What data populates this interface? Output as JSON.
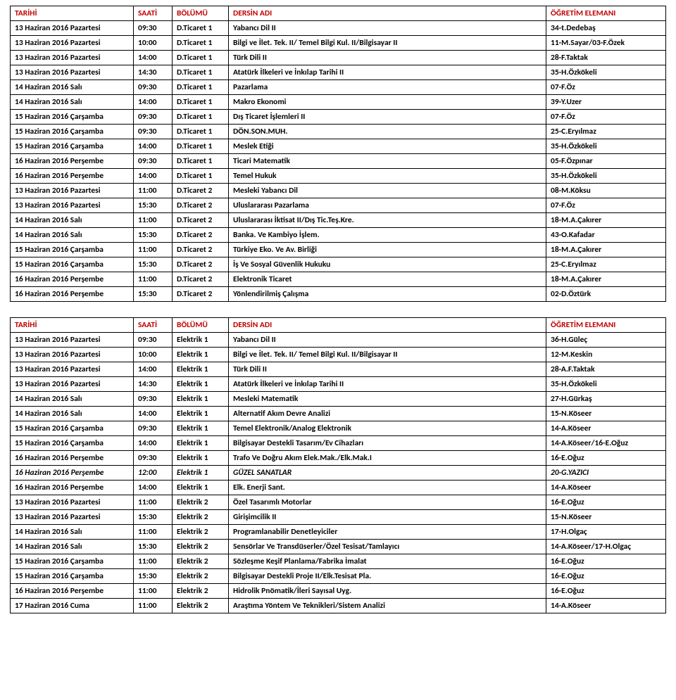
{
  "header": {
    "date": "TARİHİ",
    "time": "SAATİ",
    "dept": "BÖLÜMÜ",
    "course": "DERSİN ADI",
    "instructor": "ÖĞRETİM  ELEMANI",
    "color": "#c00000"
  },
  "colors": {
    "border": "#000000",
    "text": "#000000",
    "background": "#ffffff"
  },
  "tables": [
    {
      "rows": [
        {
          "date": "13 Haziran 2016 Pazartesi",
          "time": "09:30",
          "dept": "D.Ticaret 1",
          "course": "Yabancı Dil II",
          "inst": "34-t.Dedebaş"
        },
        {
          "date": "13 Haziran 2016 Pazartesi",
          "time": "10:00",
          "dept": "D.Ticaret 1",
          "course": "Bilgi ve İlet. Tek. II/ Temel Bilgi Kul. II/Bilgisayar II",
          "inst": "11-M.Sayar/03-F.Özek"
        },
        {
          "date": "13 Haziran 2016 Pazartesi",
          "time": "14:00",
          "dept": "D.Ticaret 1",
          "course": "Türk Dili II",
          "inst": "28-F.Taktak"
        },
        {
          "date": "13 Haziran 2016 Pazartesi",
          "time": "14:30",
          "dept": "D.Ticaret 1",
          "course": "Atatürk İlkeleri ve İnkılap Tarihi II",
          "inst": "35-H.Özkökeli"
        },
        {
          "date": "14 Haziran 2016 Salı",
          "time": "09:30",
          "dept": "D.Ticaret 1",
          "course": "Pazarlama",
          "inst": "07-F.Öz"
        },
        {
          "date": "14 Haziran 2016 Salı",
          "time": "14:00",
          "dept": "D.Ticaret 1",
          "course": "Makro Ekonomi",
          "inst": "39-Y.Uzer"
        },
        {
          "date": "15 Haziran 2016 Çarşamba",
          "time": "09:30",
          "dept": "D.Ticaret 1",
          "course": "Dış Ticaret İşlemleri II",
          "inst": "07-F.Öz"
        },
        {
          "date": "15 Haziran 2016 Çarşamba",
          "time": "09:30",
          "dept": "D.Ticaret 1",
          "course": "DÖN.SON.MUH.",
          "inst": "25-C.Eryılmaz"
        },
        {
          "date": "15 Haziran 2016 Çarşamba",
          "time": "14:00",
          "dept": "D.Ticaret 1",
          "course": "Meslek Etiği",
          "inst": "35-H.Özkökeli"
        },
        {
          "date": "16 Haziran 2016 Perşembe",
          "time": "09:30",
          "dept": "D.Ticaret 1",
          "course": "Ticari Matematik",
          "inst": "05-F.Özpınar"
        },
        {
          "date": "16 Haziran 2016 Perşembe",
          "time": "14:00",
          "dept": "D.Ticaret 1",
          "course": "Temel Hukuk",
          "inst": "35-H.Özkökeli"
        },
        {
          "date": "13 Haziran 2016 Pazartesi",
          "time": "11:00",
          "dept": "D.Ticaret 2",
          "course": "Mesleki Yabancı Dil",
          "inst": "08-M.Köksu"
        },
        {
          "date": "13 Haziran 2016 Pazartesi",
          "time": "15:30",
          "dept": "D.Ticaret 2",
          "course": "Uluslararası Pazarlama",
          "inst": "07-F.Öz"
        },
        {
          "date": "14 Haziran 2016 Salı",
          "time": "11:00",
          "dept": "D.Ticaret 2",
          "course": "Uluslararası İktisat II/Dış Tic.Teş.Kre.",
          "inst": "18-M.A.Çakırer"
        },
        {
          "date": "14 Haziran 2016 Salı",
          "time": "15:30",
          "dept": "D.Ticaret 2",
          "course": "Banka. Ve Kambiyo İşlem.",
          "inst": "43-O.Kafadar"
        },
        {
          "date": "15 Haziran 2016 Çarşamba",
          "time": "11:00",
          "dept": "D.Ticaret 2",
          "course": "Türkiye Eko. Ve Av. Birliği",
          "inst": "18-M.A.Çakırer"
        },
        {
          "date": "15 Haziran 2016 Çarşamba",
          "time": "15:30",
          "dept": "D.Ticaret 2",
          "course": "İş Ve Sosyal Güvenlik Hukuku",
          "inst": "25-C.Eryılmaz"
        },
        {
          "date": "16 Haziran 2016 Perşembe",
          "time": "11:00",
          "dept": "D.Ticaret 2",
          "course": "Elektronik Ticaret",
          "inst": "18-M.A.Çakırer"
        },
        {
          "date": "16 Haziran 2016 Perşembe",
          "time": "15:30",
          "dept": "D.Ticaret 2",
          "course": "Yönlendirilmiş Çalışma",
          "inst": "02-D.Öztürk"
        }
      ]
    },
    {
      "rows": [
        {
          "date": "13 Haziran 2016 Pazartesi",
          "time": "09:30",
          "dept": "Elektrik 1",
          "course": "Yabancı Dil II",
          "inst": "36-H.Güleç"
        },
        {
          "date": "13 Haziran 2016 Pazartesi",
          "time": "10:00",
          "dept": "Elektrik 1",
          "course": "Bilgi ve İlet. Tek. II/ Temel Bilgi Kul. II/Bilgisayar II",
          "inst": "12-M.Keskin"
        },
        {
          "date": "13 Haziran 2016 Pazartesi",
          "time": "14:00",
          "dept": "Elektrik 1",
          "course": "Türk Dili II",
          "inst": "28-A.F.Taktak"
        },
        {
          "date": "13 Haziran 2016 Pazartesi",
          "time": "14:30",
          "dept": "Elektrik 1",
          "course": "Atatürk İlkeleri ve İnkılap Tarihi II",
          "inst": "35-H.Özkökeli"
        },
        {
          "date": "14 Haziran 2016 Salı",
          "time": "09:30",
          "dept": "Elektrik 1",
          "course": "Mesleki Matematik",
          "inst": "27-H.Gürkaş"
        },
        {
          "date": "14 Haziran 2016 Salı",
          "time": "14:00",
          "dept": "Elektrik 1",
          "course": "Alternatif Akım Devre Analizi",
          "inst": "15-N.Köseer"
        },
        {
          "date": "15 Haziran 2016 Çarşamba",
          "time": "09:30",
          "dept": "Elektrik 1",
          "course": "Temel Elektronik/Analog Elektronik",
          "inst": "14-A.Köseer"
        },
        {
          "date": "15 Haziran 2016 Çarşamba",
          "time": "14:00",
          "dept": "Elektrik 1",
          "course": "Bilgisayar Destekli Tasarım/Ev Cihazları",
          "inst": "14-A.Köseer/16-E.Oğuz"
        },
        {
          "date": "16 Haziran 2016 Perşembe",
          "time": "09:30",
          "dept": "Elektrik 1",
          "course": "Trafo Ve Doğru Akım Elek.Mak./Elk.Mak.I",
          "inst": "16-E.Oğuz"
        },
        {
          "date": "16 Haziran 2016 Perşembe",
          "time": "12:00",
          "dept": "Elektrik 1",
          "course": "GÜZEL SANATLAR",
          "inst": "20-G.YAZICI",
          "italic": true
        },
        {
          "date": "16 Haziran 2016 Perşembe",
          "time": "14:00",
          "dept": "Elektrik 1",
          "course": "Elk. Enerji Sant.",
          "inst": "14-A.Köseer"
        },
        {
          "date": "13 Haziran 2016 Pazartesi",
          "time": "11:00",
          "dept": "Elektrik 2",
          "course": "Özel Tasarımlı Motorlar",
          "inst": "16-E.Oğuz"
        },
        {
          "date": "13 Haziran 2016 Pazartesi",
          "time": "15:30",
          "dept": "Elektrik 2",
          "course": "Girişimcilik II",
          "inst": "15-N.Köseer"
        },
        {
          "date": "14 Haziran 2016 Salı",
          "time": "11:00",
          "dept": "Elektrik 2",
          "course": "Programlanabilir Denetleyiciler",
          "inst": "17-H.Olgaç"
        },
        {
          "date": "14 Haziran 2016 Salı",
          "time": "15:30",
          "dept": "Elektrik 2",
          "course": "Sensörlar Ve Transdüserler/Özel Tesisat/Tamlayıcı",
          "inst": "14-A.Köseer/17-H.Olgaç"
        },
        {
          "date": "15 Haziran 2016 Çarşamba",
          "time": "11:00",
          "dept": "Elektrik 2",
          "course": "Sözleşme Keşif Planlama/Fabrika İmalat",
          "inst": "16-E.Oğuz"
        },
        {
          "date": "15 Haziran 2016 Çarşamba",
          "time": "15:30",
          "dept": "Elektrik 2",
          "course": "Bilgisayar Destekli Proje II/Elk.Tesisat Pla.",
          "inst": "16-E.Oğuz"
        },
        {
          "date": "16 Haziran 2016 Perşembe",
          "time": "11:00",
          "dept": "Elektrik 2",
          "course": "Hidrolik Pnömatik/İleri Sayısal Uyg.",
          "inst": "16-E.Oğuz"
        },
        {
          "date": "17 Haziran 2016 Cuma",
          "time": "11:00",
          "dept": "Elektrik 2",
          "course": "Araştıma Yöntem Ve Teknikleri/Sistem Analizi",
          "inst": "14-A.Köseer"
        }
      ]
    }
  ]
}
